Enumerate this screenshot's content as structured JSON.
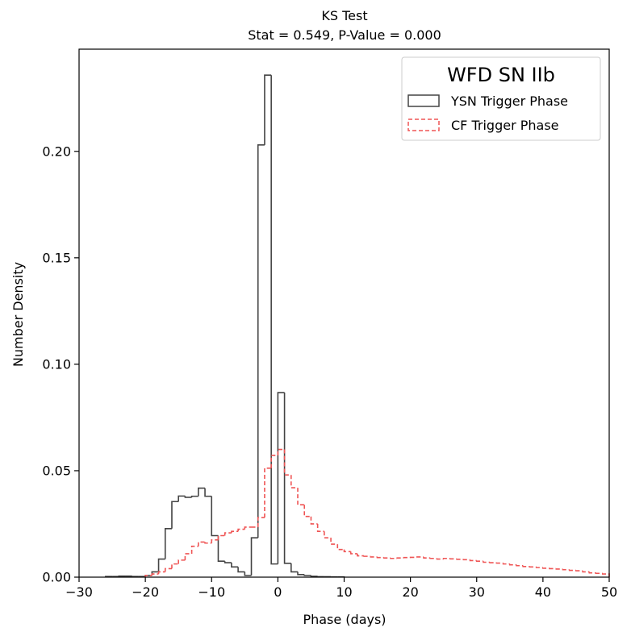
{
  "chart_data": {
    "type": "histogram",
    "title": "KS Test",
    "subtitle": "Stat = 0.549, P-Value = 0.000",
    "xlabel": "Phase (days)",
    "ylabel": "Number Density",
    "xlim": [
      -30,
      50
    ],
    "ylim": [
      0,
      0.248
    ],
    "xticks": [
      -30,
      -20,
      -10,
      0,
      10,
      20,
      30,
      40,
      50
    ],
    "yticks": [
      0.0,
      0.05,
      0.1,
      0.15,
      0.2
    ],
    "ytick_labels": [
      "0.00",
      "0.05",
      "0.10",
      "0.15",
      "0.20"
    ],
    "grid": false,
    "legend": {
      "title": "WFD SN IIb",
      "placement": "top-right"
    },
    "series": [
      {
        "name": "YSN Trigger Phase",
        "style": "solid",
        "color": "#444444",
        "bins": [
          -26,
          -25,
          -24,
          -23,
          -22,
          -21,
          -20,
          -19,
          -18,
          -17,
          -16,
          -15,
          -14,
          -13,
          -12,
          -11,
          -10,
          -9,
          -8,
          -7,
          -6,
          -5,
          -4,
          -3,
          -2,
          -1,
          0,
          1,
          2,
          3,
          4,
          5,
          6,
          7,
          8,
          9,
          10
        ],
        "values": [
          0.0003,
          0.0003,
          0.0005,
          0.0005,
          0.0003,
          0.0003,
          0.0008,
          0.0025,
          0.0085,
          0.0228,
          0.0355,
          0.0381,
          0.0375,
          0.038,
          0.0418,
          0.038,
          0.0195,
          0.0075,
          0.0068,
          0.0048,
          0.0025,
          0.0008,
          0.0185,
          0.203,
          0.2358,
          0.0062,
          0.0867,
          0.0065,
          0.0025,
          0.0012,
          0.0008,
          0.0004,
          0.0002,
          0.0002,
          0.0001,
          0.0001
        ]
      },
      {
        "name": "CF Trigger Phase",
        "style": "dashed",
        "color": "#ef5555",
        "bins": [
          -20,
          -19,
          -18,
          -17,
          -16,
          -15,
          -14,
          -13,
          -12,
          -11,
          -10,
          -9,
          -8,
          -7,
          -6,
          -5,
          -4,
          -3,
          -2,
          -1,
          0,
          1,
          2,
          3,
          4,
          5,
          6,
          7,
          8,
          9,
          10,
          11,
          12,
          13,
          14,
          15,
          16,
          17,
          18,
          19,
          20,
          21,
          22,
          23,
          24,
          25,
          26,
          27,
          28,
          29,
          30,
          31,
          32,
          33,
          34,
          35,
          36,
          37,
          38,
          39,
          40,
          41,
          42,
          43,
          44,
          45,
          46,
          47,
          48,
          49,
          50
        ],
        "values": [
          0.0008,
          0.0015,
          0.0025,
          0.004,
          0.0062,
          0.008,
          0.011,
          0.0145,
          0.0165,
          0.016,
          0.0175,
          0.0195,
          0.0208,
          0.0215,
          0.0225,
          0.0235,
          0.0235,
          0.028,
          0.0512,
          0.0572,
          0.06,
          0.048,
          0.042,
          0.034,
          0.0285,
          0.025,
          0.0215,
          0.0185,
          0.0155,
          0.013,
          0.012,
          0.011,
          0.01,
          0.0098,
          0.0095,
          0.0092,
          0.009,
          0.0088,
          0.009,
          0.0092,
          0.0093,
          0.0095,
          0.009,
          0.0088,
          0.0085,
          0.0088,
          0.0086,
          0.0084,
          0.0082,
          0.0078,
          0.0075,
          0.007,
          0.0068,
          0.0066,
          0.0062,
          0.0058,
          0.0054,
          0.005,
          0.0048,
          0.0045,
          0.0042,
          0.004,
          0.0038,
          0.0035,
          0.0032,
          0.003,
          0.0025,
          0.002,
          0.0018,
          0.0015
        ]
      }
    ]
  }
}
